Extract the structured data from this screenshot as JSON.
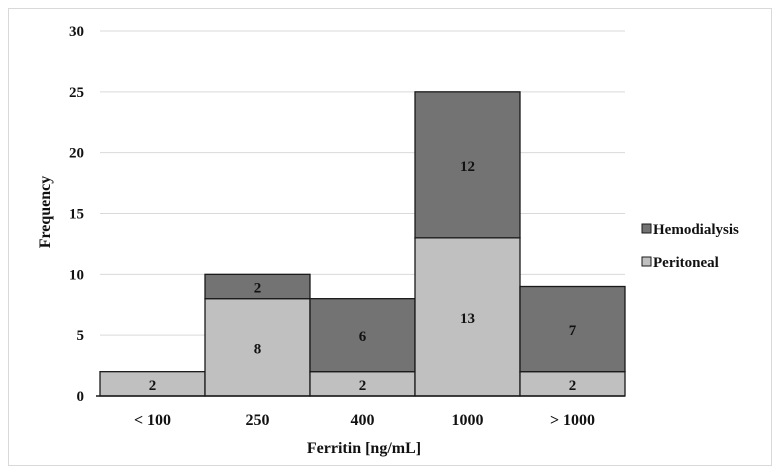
{
  "chart_data": {
    "type": "bar",
    "stacked": true,
    "title": "",
    "xlabel": "Ferritin [ng/mL]",
    "ylabel": "Frequency",
    "categories": [
      "< 100",
      "250",
      "400",
      "1000",
      "> 1000"
    ],
    "series": [
      {
        "name": "Peritoneal",
        "values": [
          2,
          8,
          2,
          13,
          2
        ],
        "labels": [
          "2",
          "8",
          "2",
          "13",
          "2"
        ],
        "color": "#c0c0c0"
      },
      {
        "name": "Hemodialysis",
        "values": [
          0,
          2,
          6,
          12,
          7
        ],
        "labels": [
          "",
          "2",
          "6",
          "12",
          "7"
        ],
        "color": "#737373"
      }
    ],
    "ylim": [
      0,
      30
    ],
    "yticks": [
      "0",
      "5",
      "10",
      "15",
      "20",
      "25",
      "30"
    ],
    "grid": true,
    "legend": "right",
    "legend_entries": [
      "Hemodialysis",
      "Peritoneal"
    ]
  }
}
